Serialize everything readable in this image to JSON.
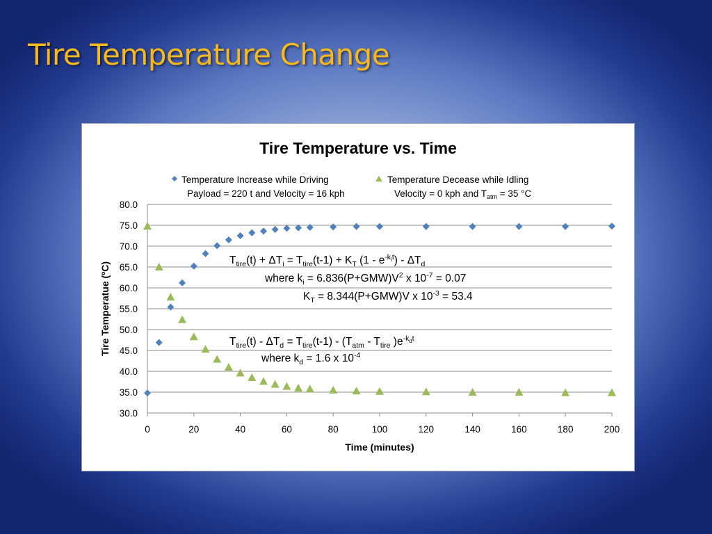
{
  "slide": {
    "title": "Tire Temperature Change",
    "colors": {
      "title": "#f6b81c"
    }
  },
  "chart_data": {
    "type": "scatter",
    "title": "Tire Temperature vs. Time",
    "xlabel": "Time (minutes)",
    "ylabel": "Tire Temperatue (ºC)",
    "xlim": [
      0,
      200
    ],
    "ylim": [
      30,
      80
    ],
    "x_ticks": [
      0,
      20,
      40,
      60,
      80,
      100,
      120,
      140,
      160,
      180,
      200
    ],
    "y_ticks": [
      "30.0",
      "35.0",
      "40.0",
      "45.0",
      "50.0",
      "55.0",
      "60.0",
      "65.0",
      "70.0",
      "75.0",
      "80.0"
    ],
    "grid": "horizontal",
    "legend_position": "top",
    "series": [
      {
        "name": "Temperature Increase while Driving",
        "subtitle": "Payload = 220 t and Velocity = 16 kph",
        "marker": "diamond",
        "color": "#4f81bd",
        "x": [
          0,
          5,
          10,
          15,
          20,
          25,
          30,
          35,
          40,
          45,
          50,
          55,
          60,
          65,
          70,
          80,
          90,
          100,
          120,
          140,
          160,
          180,
          200
        ],
        "y": [
          34.8,
          46.9,
          55.4,
          61.2,
          65.2,
          68.2,
          70.1,
          71.5,
          72.5,
          73.2,
          73.6,
          74.0,
          74.3,
          74.4,
          74.5,
          74.6,
          74.7,
          74.7,
          74.7,
          74.7,
          74.7,
          74.7,
          74.8
        ]
      },
      {
        "name": "Temperature Decease while Idling",
        "subtitle": "Velocity = 0 kph and T",
        "subtitle_sub": "atm",
        "subtitle_tail": " = 35 °C",
        "marker": "triangle",
        "color": "#9bbb59",
        "x": [
          0,
          5,
          10,
          15,
          20,
          25,
          30,
          35,
          40,
          45,
          50,
          55,
          60,
          65,
          70,
          80,
          90,
          100,
          120,
          140,
          160,
          180,
          200
        ],
        "y": [
          74.8,
          65.0,
          57.8,
          52.4,
          48.3,
          45.3,
          42.9,
          41.0,
          39.6,
          38.5,
          37.6,
          36.9,
          36.4,
          36.0,
          35.8,
          35.5,
          35.3,
          35.2,
          35.1,
          35.0,
          35.0,
          34.9,
          34.9
        ]
      }
    ],
    "annotations": {
      "eq1_line1": [
        {
          "t": "T",
          "s": ""
        },
        {
          "t": "tire",
          "s": "sub"
        },
        {
          "t": "(t) + ΔT",
          "s": ""
        },
        {
          "t": "i",
          "s": "sub"
        },
        {
          "t": " = T",
          "s": ""
        },
        {
          "t": "tire",
          "s": "sub"
        },
        {
          "t": "(t-1) + K",
          "s": ""
        },
        {
          "t": "T",
          "s": "sub"
        },
        {
          "t": " (1 - e",
          "s": ""
        },
        {
          "t": "-k",
          "s": "sup"
        },
        {
          "t": "i",
          "s": "supsub"
        },
        {
          "t": "t",
          "s": "sup"
        },
        {
          "t": ") - ΔT",
          "s": ""
        },
        {
          "t": "d",
          "s": "sub"
        }
      ],
      "eq1_line2": [
        {
          "t": "where k",
          "s": ""
        },
        {
          "t": "i",
          "s": "sub"
        },
        {
          "t": "  = 6.836(P+GMW)V",
          "s": ""
        },
        {
          "t": "2",
          "s": "sup"
        },
        {
          "t": " x 10",
          "s": ""
        },
        {
          "t": "-7",
          "s": "sup"
        },
        {
          "t": " = 0.07",
          "s": ""
        }
      ],
      "eq1_line3": [
        {
          "t": "K",
          "s": ""
        },
        {
          "t": "T",
          "s": "sub"
        },
        {
          "t": " = 8.344(P+GMW)V x 10",
          "s": ""
        },
        {
          "t": "-3",
          "s": "sup"
        },
        {
          "t": " = 53.4",
          "s": ""
        }
      ],
      "eq2_line1": [
        {
          "t": "T",
          "s": ""
        },
        {
          "t": "tire",
          "s": "sub"
        },
        {
          "t": "(t) - ΔT",
          "s": ""
        },
        {
          "t": "d",
          "s": "sub"
        },
        {
          "t": " = T",
          "s": ""
        },
        {
          "t": "tire",
          "s": "sub"
        },
        {
          "t": "(t-1) - (T",
          "s": ""
        },
        {
          "t": "atm",
          "s": "sub"
        },
        {
          "t": " - T",
          "s": ""
        },
        {
          "t": "tire",
          "s": "sub"
        },
        {
          "t": " )e",
          "s": ""
        },
        {
          "t": "-k",
          "s": "sup"
        },
        {
          "t": "d",
          "s": "supsub"
        },
        {
          "t": "t",
          "s": "sup"
        }
      ],
      "eq2_line2": [
        {
          "t": "where  k",
          "s": ""
        },
        {
          "t": "d",
          "s": "sub"
        },
        {
          "t": " = 1.6 x 10",
          "s": ""
        },
        {
          "t": "-4",
          "s": "sup"
        }
      ]
    }
  }
}
